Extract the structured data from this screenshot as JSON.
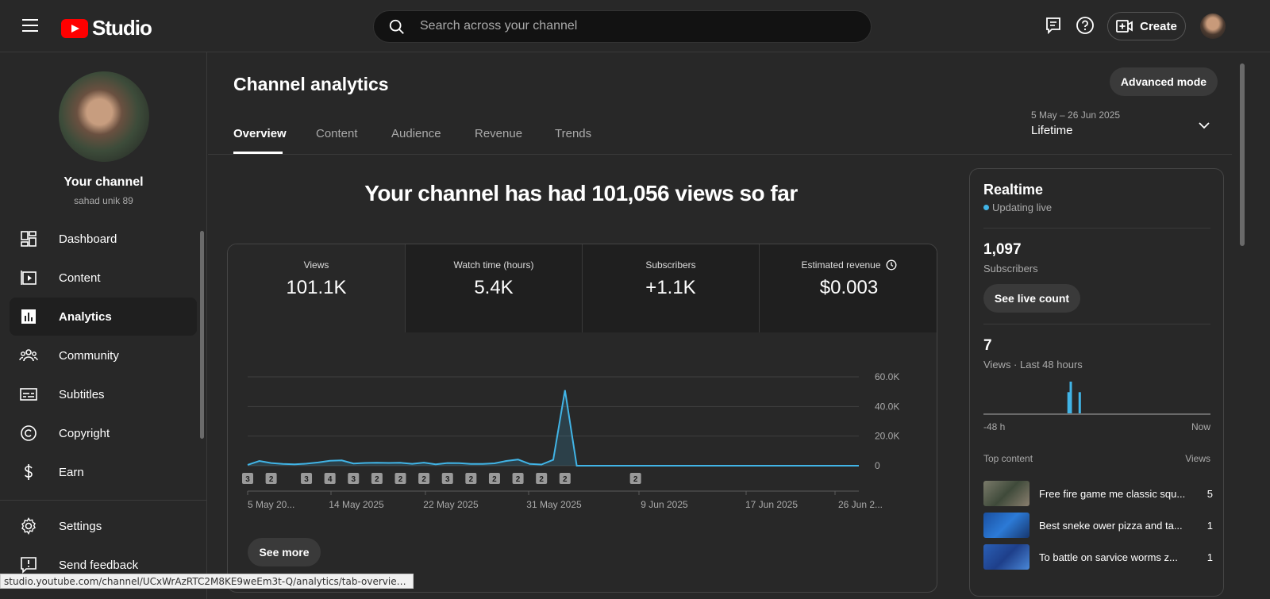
{
  "topbar": {
    "logo_text": "Studio",
    "search_placeholder": "Search across your channel",
    "create_label": "Create",
    "icons": [
      "menu-icon",
      "youtube-logo-icon",
      "search-icon",
      "feedback-icon",
      "help-icon",
      "create-video-icon"
    ]
  },
  "sidebar": {
    "channel_title": "Your channel",
    "channel_name": "sahad unik 89",
    "items": [
      {
        "label": "Dashboard",
        "icon": "dashboard-icon"
      },
      {
        "label": "Content",
        "icon": "content-icon"
      },
      {
        "label": "Analytics",
        "icon": "analytics-icon",
        "active": true
      },
      {
        "label": "Community",
        "icon": "community-icon"
      },
      {
        "label": "Subtitles",
        "icon": "subtitles-icon"
      },
      {
        "label": "Copyright",
        "icon": "copyright-icon"
      },
      {
        "label": "Earn",
        "icon": "earn-icon"
      }
    ],
    "bottom_items": [
      {
        "label": "Settings",
        "icon": "settings-icon"
      },
      {
        "label": "Send feedback",
        "icon": "feedback-icon"
      }
    ]
  },
  "main": {
    "title": "Channel analytics",
    "advanced_mode_label": "Advanced mode",
    "tabs": [
      "Overview",
      "Content",
      "Audience",
      "Revenue",
      "Trends"
    ],
    "active_tab": "Overview",
    "date_range": "5 May – 26 Jun 2025",
    "date_label": "Lifetime",
    "headline": "Your channel has had 101,056 views so far",
    "metrics": [
      {
        "label": "Views",
        "value": "101.1K"
      },
      {
        "label": "Watch time (hours)",
        "value": "5.4K"
      },
      {
        "label": "Subscribers",
        "value": "+1.1K"
      },
      {
        "label": "Estimated revenue",
        "value": "$0.003"
      }
    ],
    "see_more_label": "See more"
  },
  "chart_data": {
    "type": "line",
    "title": "",
    "xlabel": "",
    "ylabel": "",
    "ylim": [
      0,
      60000
    ],
    "y_ticks": [
      "60.0K",
      "40.0K",
      "20.0K",
      "0"
    ],
    "x_tick_labels": [
      "5 May 20...",
      "14 May 2025",
      "22 May 2025",
      "31 May 2025",
      "9 Jun 2025",
      "17 Jun 2025",
      "26 Jun 2..."
    ],
    "series": [
      {
        "values": [
          600,
          3200,
          1800,
          1200,
          900,
          1400,
          2200,
          3400,
          3600,
          1500,
          1900,
          2000,
          1900,
          2000,
          1300,
          2100,
          900,
          1800,
          1700,
          1200,
          1200,
          1600,
          3200,
          4200,
          1200,
          800,
          4000,
          51000,
          0,
          0,
          0,
          0,
          0,
          0,
          0,
          0,
          0,
          0,
          0,
          0,
          0,
          0,
          0,
          0,
          0,
          0,
          0,
          0,
          0,
          0,
          0,
          0,
          0
        ]
      }
    ],
    "annotation_markers": [
      "3",
      "2",
      "3",
      "4",
      "3",
      "2",
      "2",
      "2",
      "3",
      "2",
      "2",
      "2",
      "2",
      "2",
      "2"
    ],
    "accent_color": "#41b4e6"
  },
  "realtime": {
    "title": "Realtime",
    "live_text": "Updating live",
    "subscribers_value": "1,097",
    "subscribers_label": "Subscribers",
    "live_count_label": "See live count",
    "views_value": "7",
    "views_label": "Views · Last 48 hours",
    "axis_start": "-48 h",
    "axis_end": "Now",
    "spark_bars": [
      0,
      0,
      0,
      0,
      0,
      0,
      0,
      0,
      0,
      0,
      0,
      0,
      0,
      0,
      0,
      0,
      0,
      0,
      0,
      0,
      0,
      0,
      0,
      0,
      0,
      0,
      0,
      0,
      0,
      0,
      0,
      0,
      0,
      0,
      0,
      0,
      0,
      0,
      0,
      0,
      0,
      0,
      0,
      0,
      0,
      0,
      0,
      0,
      0,
      0,
      0,
      0,
      0,
      0,
      0,
      0,
      0,
      0,
      0,
      0,
      0,
      0,
      0,
      0,
      0,
      0,
      0,
      0,
      0,
      0,
      0,
      0,
      0,
      0,
      0,
      2,
      0,
      3,
      0,
      0,
      0,
      0,
      0,
      0,
      0,
      2,
      0,
      0,
      0,
      0,
      0,
      0,
      0,
      0,
      0,
      0,
      0,
      0,
      0,
      0,
      0,
      0,
      0,
      0,
      0,
      0,
      0,
      0,
      0,
      0,
      0,
      0,
      0,
      0,
      0,
      0,
      0,
      0,
      0,
      0,
      0,
      0,
      0,
      0,
      0,
      0,
      0,
      0,
      0,
      0,
      0,
      0,
      0,
      0,
      0,
      0,
      0,
      0,
      0,
      0,
      0,
      0,
      0,
      0,
      0,
      0,
      0,
      0,
      0,
      0,
      0,
      0,
      0,
      0,
      0,
      0,
      0,
      0,
      0,
      0,
      0,
      0,
      0,
      0,
      0,
      0,
      0,
      0,
      0,
      0,
      0,
      0,
      0,
      0,
      0,
      0,
      0,
      0,
      0,
      0,
      0,
      0,
      0,
      0,
      0,
      0,
      0,
      0,
      0,
      0,
      0,
      0,
      0,
      0,
      0,
      0,
      0,
      0,
      0,
      0,
      0,
      0,
      0
    ],
    "top_content_label": "Top content",
    "top_content_col": "Views",
    "top_content": [
      {
        "title": "Free fire game me classic squ...",
        "views": "5"
      },
      {
        "title": "Best sneke ower pizza and ta...",
        "views": "1"
      },
      {
        "title": "To battle on sarvice worms z...",
        "views": "1"
      }
    ]
  },
  "status_bar": {
    "url": "studio.youtube.com/channel/UCxWrAzRTC2M8KE9weEm3t-Q/analytics/tab-overview/.../expl..."
  }
}
